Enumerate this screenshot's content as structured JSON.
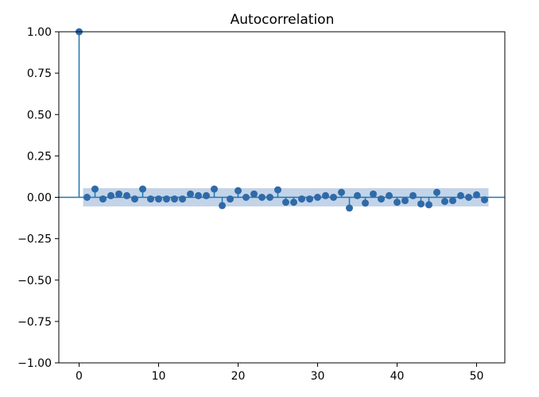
{
  "chart_data": {
    "type": "scatter",
    "title": "Autocorrelation",
    "xlabel": "",
    "ylabel": "",
    "xlim": [
      -2.55,
      53.55
    ],
    "ylim": [
      -1.0,
      1.0
    ],
    "x_ticks": [
      0,
      10,
      20,
      30,
      40,
      50
    ],
    "x_tick_labels": [
      "0",
      "10",
      "20",
      "30",
      "40",
      "50"
    ],
    "y_ticks": [
      1.0,
      0.75,
      0.5,
      0.25,
      0.0,
      -0.25,
      -0.5,
      -0.75,
      -1.0
    ],
    "y_tick_labels": [
      "1.00",
      "0.75",
      "0.50",
      "0.25",
      "0.00",
      "−0.25",
      "−0.50",
      "−0.75",
      "−1.00"
    ],
    "grid": false,
    "series": [
      {
        "x": [
          0,
          1,
          2,
          3,
          4,
          5,
          6,
          7,
          8,
          9,
          10,
          11,
          12,
          13,
          14,
          15,
          16,
          17,
          18,
          19,
          20,
          21,
          22,
          23,
          24,
          25,
          26,
          27,
          28,
          29,
          30,
          31,
          32,
          33,
          34,
          35,
          36,
          37,
          38,
          39,
          40,
          41,
          42,
          43,
          44,
          45,
          46,
          47,
          48,
          49,
          50,
          51
        ],
        "values": [
          1.0,
          0.0,
          0.05,
          -0.01,
          0.01,
          0.02,
          0.01,
          -0.01,
          0.05,
          -0.01,
          -0.01,
          -0.01,
          -0.01,
          -0.01,
          0.02,
          0.01,
          0.01,
          0.05,
          -0.05,
          -0.01,
          0.04,
          0.0,
          0.02,
          0.0,
          0.0,
          0.045,
          -0.03,
          -0.03,
          -0.01,
          -0.01,
          0.0,
          0.01,
          0.0,
          0.03,
          -0.065,
          0.01,
          -0.035,
          0.02,
          -0.01,
          0.01,
          -0.03,
          -0.02,
          0.01,
          -0.04,
          -0.045,
          0.03,
          -0.025,
          -0.02,
          0.01,
          0.0,
          0.015,
          -0.015
        ]
      }
    ],
    "confidence_band": {
      "x_start": 0.5,
      "x_end": 51.5,
      "upper": [
        0.055,
        0.055,
        0.055,
        0.055,
        0.055,
        0.055,
        0.055,
        0.055,
        0.055,
        0.055,
        0.055,
        0.055,
        0.055,
        0.055,
        0.055,
        0.055,
        0.055,
        0.055,
        0.055,
        0.055,
        0.055,
        0.055,
        0.055,
        0.055,
        0.055,
        0.055,
        0.055,
        0.055,
        0.055,
        0.055,
        0.055,
        0.055,
        0.055,
        0.055,
        0.055,
        0.055,
        0.055,
        0.055,
        0.055,
        0.055,
        0.055,
        0.055,
        0.055,
        0.055,
        0.055,
        0.055,
        0.055,
        0.055,
        0.055,
        0.055,
        0.055,
        0.055
      ],
      "lower": [
        -0.055,
        -0.055,
        -0.055,
        -0.055,
        -0.055,
        -0.055,
        -0.055,
        -0.055,
        -0.055,
        -0.055,
        -0.055,
        -0.055,
        -0.055,
        -0.055,
        -0.055,
        -0.055,
        -0.055,
        -0.055,
        -0.055,
        -0.055,
        -0.055,
        -0.055,
        -0.055,
        -0.055,
        -0.055,
        -0.055,
        -0.055,
        -0.055,
        -0.055,
        -0.055,
        -0.055,
        -0.055,
        -0.055,
        -0.055,
        -0.055,
        -0.055,
        -0.055,
        -0.055,
        -0.055,
        -0.055,
        -0.055,
        -0.055,
        -0.055,
        -0.055,
        -0.055,
        -0.055,
        -0.055,
        -0.055,
        -0.055,
        -0.055,
        -0.055,
        -0.055
      ]
    },
    "colors": {
      "marker": "#2f6aa8",
      "stem": "#1f77b4",
      "zero_line": "#1f77b4",
      "band": "#b9cde4"
    }
  }
}
